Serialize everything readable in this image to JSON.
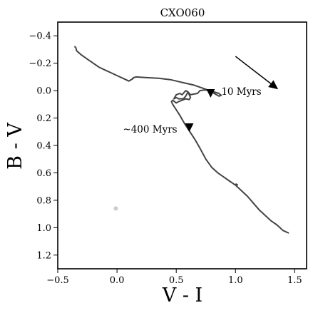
{
  "chart_data": {
    "type": "line",
    "title": "CXO060",
    "xlabel": "V - I",
    "ylabel": "B - V",
    "xlim": [
      -0.5,
      1.6
    ],
    "ylim": [
      1.3,
      -0.5
    ],
    "y_inverted": true,
    "xticks": [
      -0.5,
      0.0,
      0.5,
      1.0,
      1.5
    ],
    "xtick_labels": [
      "−0.5",
      "0.0",
      "0.5",
      "1.0",
      "1.5"
    ],
    "yticks": [
      -0.4,
      -0.2,
      0.0,
      0.2,
      0.4,
      0.6,
      0.8,
      1.0,
      1.2
    ],
    "ytick_labels": [
      "−0.4",
      "−0.2",
      "0.0",
      "0.2",
      "0.4",
      "0.6",
      "0.8",
      "1.0",
      "1.2"
    ],
    "series": [
      {
        "color": "#444444",
        "points": [
          [
            -0.35,
            -0.32
          ],
          [
            -0.34,
            -0.29
          ],
          [
            -0.3,
            -0.26
          ],
          [
            -0.25,
            -0.23
          ],
          [
            -0.2,
            -0.2
          ],
          [
            -0.15,
            -0.17
          ],
          [
            -0.1,
            -0.15
          ],
          [
            -0.05,
            -0.13
          ],
          [
            0.0,
            -0.11
          ],
          [
            0.05,
            -0.09
          ],
          [
            0.1,
            -0.07
          ],
          [
            0.13,
            -0.085
          ],
          [
            0.14,
            -0.095
          ],
          [
            0.16,
            -0.1
          ],
          [
            0.25,
            -0.095
          ],
          [
            0.35,
            -0.09
          ],
          [
            0.45,
            -0.08
          ],
          [
            0.55,
            -0.06
          ],
          [
            0.65,
            -0.04
          ],
          [
            0.75,
            -0.01
          ],
          [
            0.82,
            0.02
          ],
          [
            0.86,
            0.04
          ],
          [
            0.88,
            0.035
          ],
          [
            0.86,
            0.02
          ],
          [
            0.82,
            0.01
          ],
          [
            0.78,
            0.0
          ],
          [
            0.74,
            -0.005
          ],
          [
            0.7,
            0.0
          ],
          [
            0.68,
            0.02
          ],
          [
            0.65,
            0.025
          ],
          [
            0.62,
            0.03
          ],
          [
            0.6,
            0.01
          ],
          [
            0.58,
            0.0
          ],
          [
            0.55,
            0.03
          ],
          [
            0.53,
            0.02
          ],
          [
            0.5,
            0.03
          ],
          [
            0.48,
            0.06
          ],
          [
            0.5,
            0.05
          ],
          [
            0.52,
            0.06
          ],
          [
            0.56,
            0.06
          ],
          [
            0.58,
            0.04
          ],
          [
            0.6,
            0.01
          ],
          [
            0.62,
            0.05
          ],
          [
            0.61,
            0.065
          ],
          [
            0.58,
            0.06
          ],
          [
            0.55,
            0.07
          ],
          [
            0.52,
            0.08
          ],
          [
            0.5,
            0.09
          ],
          [
            0.47,
            0.07
          ],
          [
            0.46,
            0.08
          ],
          [
            0.47,
            0.1
          ],
          [
            0.5,
            0.14
          ],
          [
            0.53,
            0.18
          ],
          [
            0.55,
            0.21
          ],
          [
            0.57,
            0.24
          ],
          [
            0.6,
            0.28
          ],
          [
            0.63,
            0.32
          ],
          [
            0.66,
            0.36
          ],
          [
            0.7,
            0.42
          ],
          [
            0.75,
            0.5
          ],
          [
            0.8,
            0.56
          ],
          [
            0.85,
            0.6
          ],
          [
            0.9,
            0.63
          ],
          [
            0.95,
            0.66
          ],
          [
            1.0,
            0.69
          ],
          [
            1.05,
            0.73
          ],
          [
            1.1,
            0.77
          ],
          [
            1.15,
            0.82
          ],
          [
            1.2,
            0.87
          ],
          [
            1.25,
            0.91
          ],
          [
            1.3,
            0.95
          ],
          [
            1.35,
            0.98
          ],
          [
            1.4,
            1.02
          ],
          [
            1.45,
            1.04
          ]
        ],
        "marker_glitches": [
          [
            [
              -0.36,
              -0.32
            ],
            [
              -0.35,
              -0.32
            ]
          ],
          [
            [
              0.13,
              -0.085
            ],
            [
              0.14,
              -0.095
            ]
          ],
          [
            [
              1.0,
              0.68
            ],
            [
              1.02,
              0.69
            ]
          ]
        ]
      }
    ],
    "markers": [
      {
        "shape": "triangle-down",
        "x": 0.79,
        "y": 0.02,
        "color": "#000000"
      },
      {
        "shape": "triangle-down",
        "x": 0.61,
        "y": 0.27,
        "color": "#000000"
      }
    ],
    "points_extra": [
      {
        "x": -0.01,
        "y": 0.86,
        "color": "#cccccc"
      }
    ],
    "annotations": [
      {
        "text": "10 Myrs",
        "x": 0.88,
        "y": 0.01
      },
      {
        "text": "~400 Myrs",
        "x": 0.05,
        "y": 0.285
      }
    ],
    "arrow": {
      "x1": 1.0,
      "y1": -0.25,
      "x2": 1.36,
      "y2": -0.01,
      "color": "#000000"
    }
  }
}
